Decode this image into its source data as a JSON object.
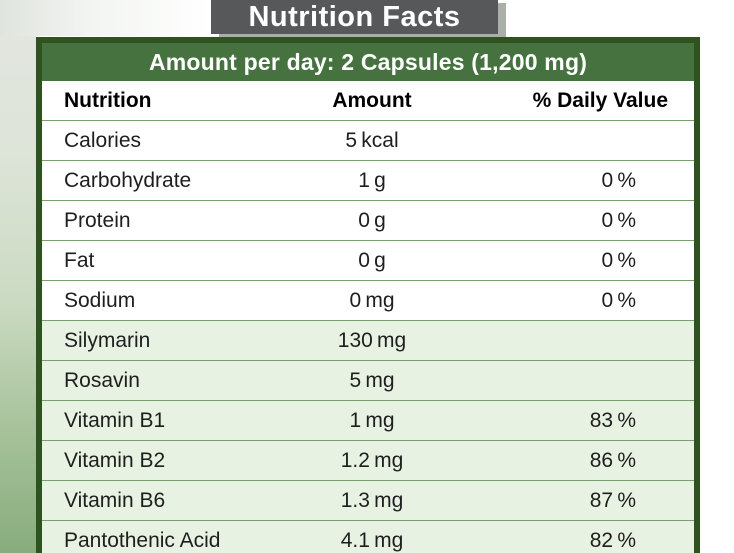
{
  "title": "Nutrition Facts",
  "table": {
    "band": "Amount per day: 2 Capsules (1,200 mg)",
    "columns": {
      "nutrition": "Nutrition",
      "amount": "Amount",
      "daily": "% Daily Value"
    },
    "rows": [
      {
        "name": "Calories",
        "amount": "5 kcal",
        "daily": "",
        "highlight": false
      },
      {
        "name": "Carbohydrate",
        "amount": "1 g",
        "daily": "0 %",
        "highlight": false
      },
      {
        "name": "Protein",
        "amount": "0 g",
        "daily": "0 %",
        "highlight": false
      },
      {
        "name": "Fat",
        "amount": "0 g",
        "daily": "0 %",
        "highlight": false
      },
      {
        "name": "Sodium",
        "amount": "0 mg",
        "daily": "0 %",
        "highlight": false
      },
      {
        "name": "Silymarin",
        "amount": "130 mg",
        "daily": "",
        "highlight": true
      },
      {
        "name": "Rosavin",
        "amount": "5 mg",
        "daily": "",
        "highlight": true
      },
      {
        "name": "Vitamin B1",
        "amount": "1 mg",
        "daily": "83 %",
        "highlight": true
      },
      {
        "name": "Vitamin B2",
        "amount": "1.2 mg",
        "daily": "86 %",
        "highlight": true
      },
      {
        "name": "Vitamin B6",
        "amount": "1.3 mg",
        "daily": "87 %",
        "highlight": true
      },
      {
        "name": "Pantothenic Acid",
        "amount": "4.1 mg",
        "daily": "82 %",
        "highlight": true
      }
    ]
  },
  "colors": {
    "title_bg": "#57585a",
    "title_text": "#ffffff",
    "table_border_green": "#2e5320",
    "band_green": "#467240",
    "band_text": "#ffffff",
    "highlight_row_green": "#e8f2e2",
    "separator_green": "#79a06c",
    "body_text": "#1e1e1e"
  }
}
